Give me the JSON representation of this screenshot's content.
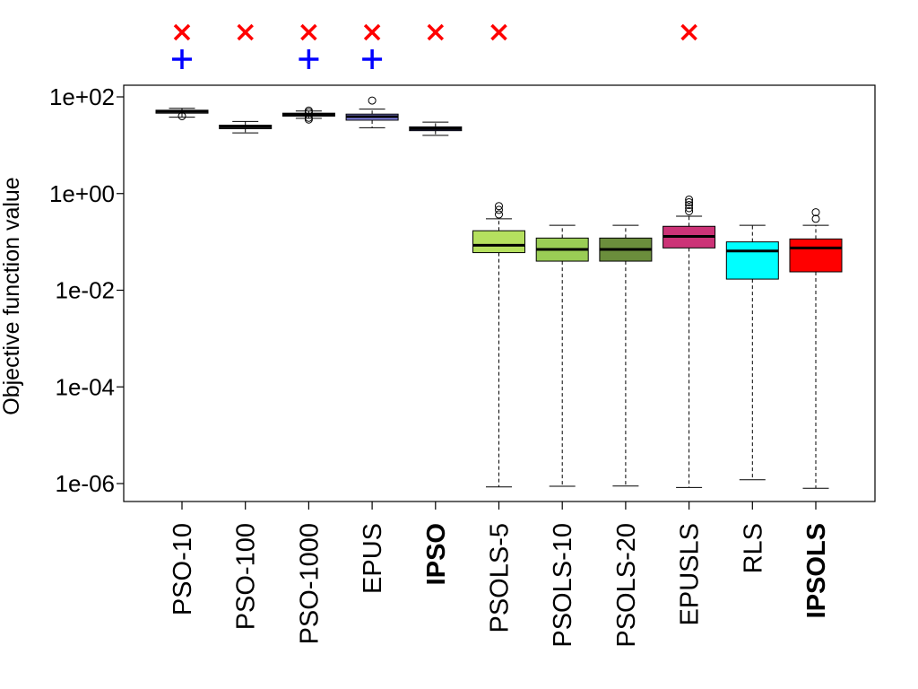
{
  "chart_data": {
    "type": "box",
    "ylabel": "Objective function value",
    "yscale": "log",
    "ylim": [
      4.5e-07,
      200
    ],
    "y_ticks": [
      {
        "value": 1e-06,
        "label": "1e-06"
      },
      {
        "value": 0.0001,
        "label": "1e-04"
      },
      {
        "value": 0.01,
        "label": "1e-02"
      },
      {
        "value": 1,
        "label": "1e+00"
      },
      {
        "value": 100,
        "label": "1e+02"
      }
    ],
    "categories": [
      {
        "label": "PSO-10",
        "bold": false
      },
      {
        "label": "PSO-100",
        "bold": false
      },
      {
        "label": "PSO-1000",
        "bold": false
      },
      {
        "label": "EPUS",
        "bold": false
      },
      {
        "label": "IPSO",
        "bold": true
      },
      {
        "label": "PSOLS-5",
        "bold": false
      },
      {
        "label": "PSOLS-10",
        "bold": false
      },
      {
        "label": "PSOLS-20",
        "bold": false
      },
      {
        "label": "EPUSLS",
        "bold": false
      },
      {
        "label": "RLS",
        "bold": false
      },
      {
        "label": "IPSOLS",
        "bold": true
      }
    ],
    "boxes": [
      {
        "whisker_low": 38,
        "q1": 46,
        "median": 50,
        "q3": 53,
        "whisker_high": 58,
        "outliers": [
          40
        ],
        "fill": "#ffffff"
      },
      {
        "whisker_low": 18,
        "q1": 22,
        "median": 24,
        "q3": 26,
        "whisker_high": 31,
        "outliers": [],
        "fill": "#ffffff"
      },
      {
        "whisker_low": 36,
        "q1": 40,
        "median": 43,
        "q3": 46,
        "whisker_high": 51,
        "outliers": [
          34,
          37,
          48,
          52
        ],
        "fill": "#ffffff"
      },
      {
        "whisker_low": 23,
        "q1": 33,
        "median": 39,
        "q3": 44,
        "whisker_high": 56,
        "outliers": [
          84
        ],
        "fill": "#8888ee"
      },
      {
        "whisker_low": 16,
        "q1": 20,
        "median": 22,
        "q3": 24,
        "whisker_high": 30,
        "outliers": [],
        "fill": "#6666cc"
      },
      {
        "whisker_low": 8.5e-07,
        "q1": 0.06,
        "median": 0.085,
        "q3": 0.17,
        "whisker_high": 0.3,
        "outliers": [
          0.37,
          0.46,
          0.55
        ],
        "fill": "#b5e05f"
      },
      {
        "whisker_low": 8.8e-07,
        "q1": 0.04,
        "median": 0.07,
        "q3": 0.12,
        "whisker_high": 0.22,
        "outliers": [],
        "fill": "#9acd55"
      },
      {
        "whisker_low": 8.9e-07,
        "q1": 0.04,
        "median": 0.07,
        "q3": 0.12,
        "whisker_high": 0.22,
        "outliers": [],
        "fill": "#6b8e3c"
      },
      {
        "whisker_low": 8.3e-07,
        "q1": 0.075,
        "median": 0.13,
        "q3": 0.21,
        "whisker_high": 0.34,
        "outliers": [
          0.43,
          0.5,
          0.58,
          0.66,
          0.75
        ],
        "fill": "#cc3377"
      },
      {
        "whisker_low": 1.2e-06,
        "q1": 0.017,
        "median": 0.065,
        "q3": 0.1,
        "whisker_high": 0.22,
        "outliers": [],
        "fill": "#00ffff"
      },
      {
        "whisker_low": 8e-07,
        "q1": 0.024,
        "median": 0.075,
        "q3": 0.115,
        "whisker_high": 0.22,
        "outliers": [
          0.3,
          0.41
        ],
        "fill": "#ff0000"
      }
    ],
    "annotations": {
      "cross_markers": [
        0,
        1,
        2,
        3,
        4,
        5,
        8
      ],
      "plus_markers": [
        0,
        2,
        3
      ],
      "cross_color": "#ff0000",
      "plus_color": "#0000ff"
    },
    "grid": false,
    "legend": "none"
  }
}
